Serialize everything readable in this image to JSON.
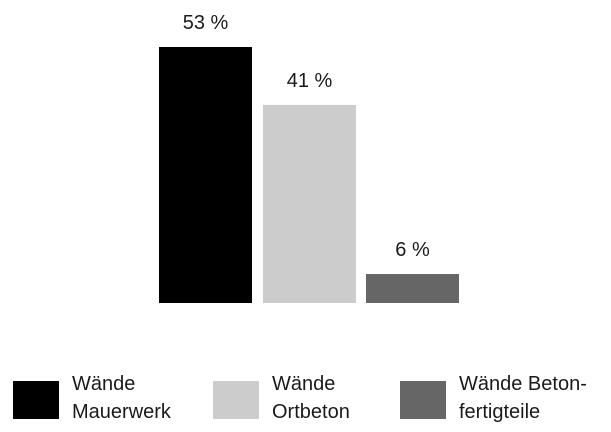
{
  "chart_data": {
    "type": "bar",
    "categories": [
      "Wände Mauerwerk",
      "Wände Ortbeton",
      "Wände Betonfertigteile"
    ],
    "values": [
      53,
      41,
      6
    ],
    "value_labels": [
      "53 %",
      "41 %",
      "6 %"
    ],
    "colors": [
      "#000000",
      "#cccccc",
      "#666666"
    ],
    "title": "",
    "xlabel": "",
    "ylabel": "",
    "ylim": [
      0,
      53
    ],
    "grid": false,
    "legend_position": "bottom"
  },
  "legend": {
    "items": [
      {
        "line1": "Wände",
        "line2": "Mauerwerk",
        "color": "#000000"
      },
      {
        "line1": "Wände",
        "line2": "Ortbeton",
        "color": "#cccccc"
      },
      {
        "line1": "Wände Beton-",
        "line2": "fertigteile",
        "color": "#666666"
      }
    ]
  }
}
